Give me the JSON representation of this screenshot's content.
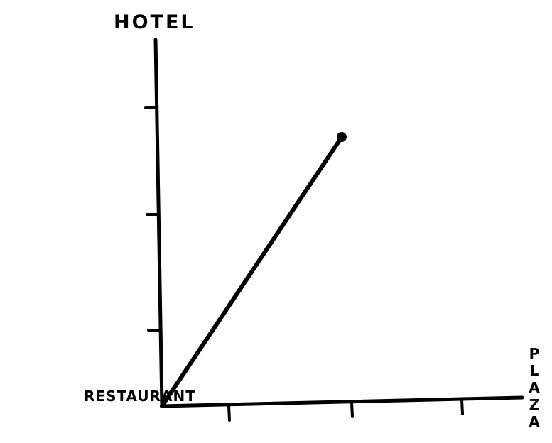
{
  "axes": {
    "y_label": "HOTEL",
    "origin_label": "RESTAURANT",
    "x_label": "PLAZA"
  }
}
